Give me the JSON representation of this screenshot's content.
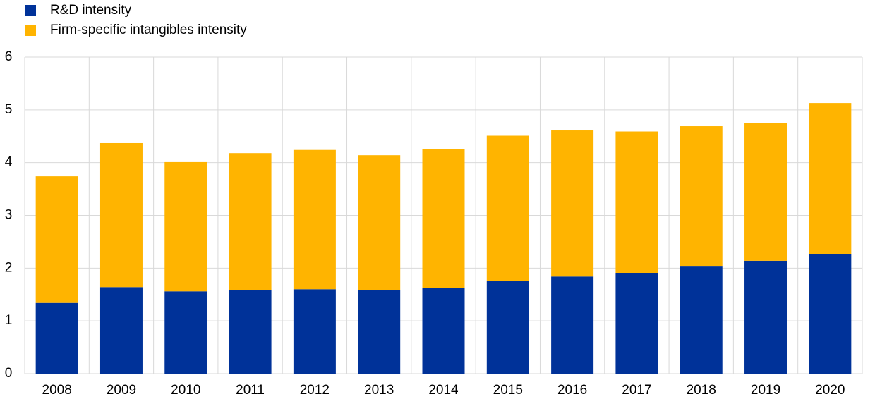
{
  "chart_data": {
    "type": "stacked_bar",
    "categories": [
      "2008",
      "2009",
      "2010",
      "2011",
      "2012",
      "2013",
      "2014",
      "2015",
      "2016",
      "2017",
      "2018",
      "2019",
      "2020"
    ],
    "series": [
      {
        "name": "R&D intensity",
        "color": "#003299",
        "values": [
          1.34,
          1.64,
          1.56,
          1.58,
          1.6,
          1.59,
          1.63,
          1.76,
          1.84,
          1.91,
          2.03,
          2.14,
          2.27
        ]
      },
      {
        "name": "Firm-specific intangibles intensity",
        "color": "#ffb400",
        "values": [
          2.4,
          2.73,
          2.45,
          2.6,
          2.64,
          2.55,
          2.62,
          2.75,
          2.77,
          2.68,
          2.66,
          2.61,
          2.86
        ]
      }
    ],
    "ylim": [
      0,
      6
    ],
    "yticks": [
      0,
      1,
      2,
      3,
      4,
      5,
      6
    ],
    "grid": true,
    "legend": "top-left"
  }
}
